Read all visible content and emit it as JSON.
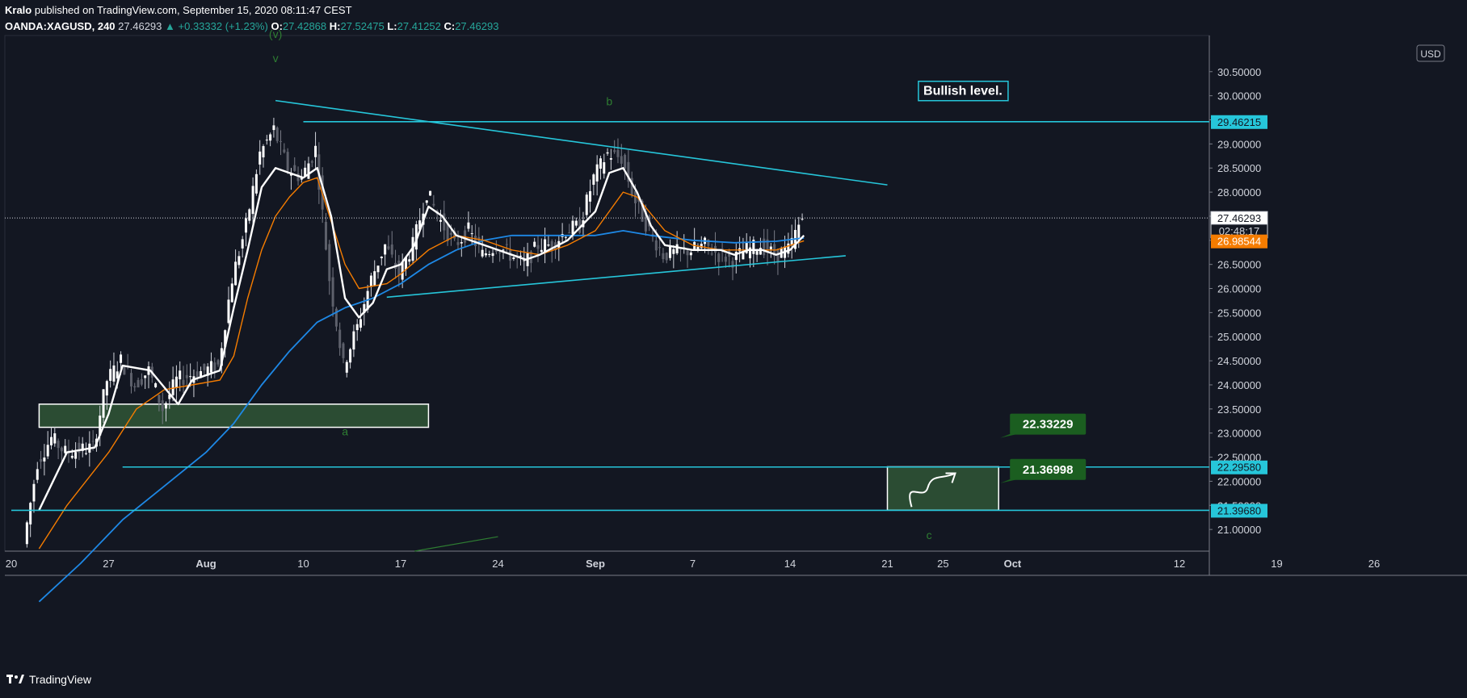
{
  "header": {
    "author": "Kralo",
    "published": "published on TradingView.com, September 15, 2020 08:11:47 CEST",
    "symbol": "OANDA:XAGUSD, 240",
    "last": "27.46293",
    "change": "+0.33332 (+1.23%)",
    "o_label": "O:",
    "o": "27.42868",
    "h_label": "H:",
    "h": "27.52475",
    "l_label": "L:",
    "l": "27.41252",
    "c_label": "C:",
    "c": "27.46293"
  },
  "footer": {
    "brand": "TradingView"
  },
  "currency_label": "USD",
  "colors": {
    "background": "#131722",
    "trendline": "#26c6da",
    "ma_fast": "#ffffff",
    "ma_mid": "#f57c00",
    "ma_slow": "#1e88e5",
    "zone_fill": "#2b4c33",
    "label_green": "#1b5e20",
    "wave_label": "#2e7d32"
  },
  "chart_data": {
    "type": "candlestick",
    "y_axis": {
      "range": [
        20.55,
        31.25
      ],
      "ticks": [
        "21.00000",
        "21.50000",
        "22.00000",
        "22.50000",
        "23.00000",
        "23.50000",
        "24.00000",
        "24.50000",
        "25.00000",
        "25.50000",
        "26.00000",
        "26.50000",
        "27.00000",
        "27.50000",
        "28.00000",
        "28.50000",
        "29.00000",
        "29.50000",
        "30.00000",
        "30.50000"
      ],
      "tick_values": [
        21.0,
        21.5,
        22.0,
        22.5,
        23.0,
        23.5,
        24.0,
        24.5,
        25.0,
        25.5,
        26.0,
        26.5,
        27.0,
        27.5,
        28.0,
        28.5,
        29.0,
        29.5,
        30.0,
        30.5
      ]
    },
    "x_axis": {
      "labels": [
        "20",
        "27",
        "Aug",
        "10",
        "17",
        "24",
        "Sep",
        "7",
        "14",
        "21",
        "25",
        "Oct",
        "12",
        "19",
        "26"
      ],
      "dates": [
        "2020-07-20",
        "2020-07-27",
        "2020-08-03",
        "2020-08-10",
        "2020-08-17",
        "2020-08-24",
        "2020-08-31",
        "2020-09-07",
        "2020-09-14",
        "2020-09-21",
        "2020-09-25",
        "2020-09-30",
        "2020-10-12",
        "2020-10-19",
        "2020-10-26"
      ]
    },
    "close_path": [
      [
        "2020-07-21",
        20.7
      ],
      [
        "2020-07-22",
        22.4
      ],
      [
        "2020-07-23",
        22.9
      ],
      [
        "2020-07-24",
        22.6
      ],
      [
        "2020-07-26",
        22.7
      ],
      [
        "2020-07-27",
        24.1
      ],
      [
        "2020-07-28",
        24.5
      ],
      [
        "2020-07-29",
        24.0
      ],
      [
        "2020-07-30",
        24.3
      ],
      [
        "2020-07-31",
        23.5
      ],
      [
        "2020-08-01",
        24.1
      ],
      [
        "2020-08-03",
        24.3
      ],
      [
        "2020-08-04",
        24.4
      ],
      [
        "2020-08-05",
        26.2
      ],
      [
        "2020-08-06",
        27.3
      ],
      [
        "2020-08-07",
        28.8
      ],
      [
        "2020-08-08",
        29.3
      ],
      [
        "2020-08-09",
        28.5
      ],
      [
        "2020-08-10",
        28.3
      ],
      [
        "2020-08-11",
        28.9
      ],
      [
        "2020-08-12",
        26.2
      ],
      [
        "2020-08-13",
        24.4
      ],
      [
        "2020-08-14",
        25.2
      ],
      [
        "2020-08-15",
        26.2
      ],
      [
        "2020-08-16",
        26.9
      ],
      [
        "2020-08-17",
        26.3
      ],
      [
        "2020-08-18",
        26.9
      ],
      [
        "2020-08-19",
        28.0
      ],
      [
        "2020-08-20",
        27.4
      ],
      [
        "2020-08-21",
        26.9
      ],
      [
        "2020-08-22",
        27.2
      ],
      [
        "2020-08-23",
        26.7
      ],
      [
        "2020-08-24",
        26.9
      ],
      [
        "2020-08-25",
        26.7
      ],
      [
        "2020-08-26",
        26.5
      ],
      [
        "2020-08-27",
        26.9
      ],
      [
        "2020-08-28",
        26.9
      ],
      [
        "2020-08-29",
        27.2
      ],
      [
        "2020-08-30",
        27.3
      ],
      [
        "2020-08-31",
        28.3
      ],
      [
        "2020-09-01",
        28.8
      ],
      [
        "2020-09-02",
        28.7
      ],
      [
        "2020-09-03",
        27.8
      ],
      [
        "2020-09-04",
        27.2
      ],
      [
        "2020-09-05",
        26.7
      ],
      [
        "2020-09-07",
        26.8
      ],
      [
        "2020-09-08",
        26.9
      ],
      [
        "2020-09-09",
        26.7
      ],
      [
        "2020-09-10",
        26.6
      ],
      [
        "2020-09-11",
        26.8
      ],
      [
        "2020-09-12",
        26.9
      ],
      [
        "2020-09-13",
        26.7
      ],
      [
        "2020-09-14",
        26.8
      ],
      [
        "2020-09-15",
        27.46
      ]
    ],
    "ma_fast_path": [
      [
        "2020-07-22",
        21.4
      ],
      [
        "2020-07-24",
        22.6
      ],
      [
        "2020-07-26",
        22.7
      ],
      [
        "2020-07-27",
        23.4
      ],
      [
        "2020-07-28",
        24.4
      ],
      [
        "2020-07-30",
        24.3
      ],
      [
        "2020-08-01",
        23.6
      ],
      [
        "2020-08-02",
        24.1
      ],
      [
        "2020-08-04",
        24.3
      ],
      [
        "2020-08-05",
        25.6
      ],
      [
        "2020-08-06",
        26.8
      ],
      [
        "2020-08-07",
        28.1
      ],
      [
        "2020-08-08",
        28.5
      ],
      [
        "2020-08-09",
        28.4
      ],
      [
        "2020-08-10",
        28.3
      ],
      [
        "2020-08-11",
        28.5
      ],
      [
        "2020-08-12",
        27.5
      ],
      [
        "2020-08-13",
        25.8
      ],
      [
        "2020-08-14",
        25.4
      ],
      [
        "2020-08-15",
        25.7
      ],
      [
        "2020-08-16",
        26.4
      ],
      [
        "2020-08-17",
        26.5
      ],
      [
        "2020-08-18",
        26.9
      ],
      [
        "2020-08-19",
        27.7
      ],
      [
        "2020-08-20",
        27.5
      ],
      [
        "2020-08-21",
        27.1
      ],
      [
        "2020-08-22",
        27.0
      ],
      [
        "2020-08-23",
        26.9
      ],
      [
        "2020-08-24",
        26.8
      ],
      [
        "2020-08-26",
        26.6
      ],
      [
        "2020-08-27",
        26.7
      ],
      [
        "2020-08-29",
        27.0
      ],
      [
        "2020-08-31",
        27.6
      ],
      [
        "2020-09-01",
        28.4
      ],
      [
        "2020-09-02",
        28.5
      ],
      [
        "2020-09-03",
        28.0
      ],
      [
        "2020-09-04",
        27.3
      ],
      [
        "2020-09-05",
        26.9
      ],
      [
        "2020-09-07",
        26.8
      ],
      [
        "2020-09-09",
        26.8
      ],
      [
        "2020-09-10",
        26.7
      ],
      [
        "2020-09-11",
        26.8
      ],
      [
        "2020-09-12",
        26.8
      ],
      [
        "2020-09-13",
        26.7
      ],
      [
        "2020-09-14",
        26.8
      ],
      [
        "2020-09-15",
        27.1
      ]
    ],
    "ma_mid_path": [
      [
        "2020-07-22",
        20.6
      ],
      [
        "2020-07-24",
        21.5
      ],
      [
        "2020-07-27",
        22.6
      ],
      [
        "2020-07-29",
        23.5
      ],
      [
        "2020-07-31",
        23.9
      ],
      [
        "2020-08-02",
        24.0
      ],
      [
        "2020-08-04",
        24.1
      ],
      [
        "2020-08-05",
        24.6
      ],
      [
        "2020-08-06",
        25.8
      ],
      [
        "2020-08-07",
        26.8
      ],
      [
        "2020-08-08",
        27.5
      ],
      [
        "2020-08-09",
        27.9
      ],
      [
        "2020-08-10",
        28.2
      ],
      [
        "2020-08-11",
        28.3
      ],
      [
        "2020-08-12",
        27.4
      ],
      [
        "2020-08-13",
        26.5
      ],
      [
        "2020-08-14",
        26.0
      ],
      [
        "2020-08-16",
        26.1
      ],
      [
        "2020-08-17",
        26.3
      ],
      [
        "2020-08-19",
        26.8
      ],
      [
        "2020-08-21",
        27.1
      ],
      [
        "2020-08-23",
        27.0
      ],
      [
        "2020-08-25",
        26.8
      ],
      [
        "2020-08-27",
        26.7
      ],
      [
        "2020-08-29",
        26.9
      ],
      [
        "2020-08-31",
        27.2
      ],
      [
        "2020-09-01",
        27.6
      ],
      [
        "2020-09-02",
        28.0
      ],
      [
        "2020-09-03",
        27.9
      ],
      [
        "2020-09-05",
        27.2
      ],
      [
        "2020-09-07",
        26.9
      ],
      [
        "2020-09-09",
        26.8
      ],
      [
        "2020-09-11",
        26.8
      ],
      [
        "2020-09-13",
        26.8
      ],
      [
        "2020-09-15",
        26.99
      ]
    ],
    "ma_slow_path": [
      [
        "2020-07-22",
        19.5
      ],
      [
        "2020-07-25",
        20.3
      ],
      [
        "2020-07-28",
        21.2
      ],
      [
        "2020-07-31",
        21.9
      ],
      [
        "2020-08-03",
        22.6
      ],
      [
        "2020-08-05",
        23.2
      ],
      [
        "2020-08-07",
        24.0
      ],
      [
        "2020-08-09",
        24.7
      ],
      [
        "2020-08-11",
        25.3
      ],
      [
        "2020-08-13",
        25.6
      ],
      [
        "2020-08-15",
        25.8
      ],
      [
        "2020-08-17",
        26.1
      ],
      [
        "2020-08-19",
        26.5
      ],
      [
        "2020-08-21",
        26.8
      ],
      [
        "2020-08-23",
        27.0
      ],
      [
        "2020-08-25",
        27.1
      ],
      [
        "2020-08-28",
        27.1
      ],
      [
        "2020-08-31",
        27.1
      ],
      [
        "2020-09-02",
        27.2
      ],
      [
        "2020-09-04",
        27.1
      ],
      [
        "2020-09-07",
        27.0
      ],
      [
        "2020-09-10",
        26.95
      ],
      [
        "2020-09-13",
        26.98
      ],
      [
        "2020-09-15",
        27.05
      ]
    ],
    "trendlines": [
      {
        "name": "upper-triangle-line",
        "from": [
          "2020-08-08",
          29.9
        ],
        "to": [
          "2020-09-21",
          28.15
        ]
      },
      {
        "name": "lower-triangle-line",
        "from": [
          "2020-08-16",
          25.82
        ],
        "to": [
          "2020-09-18",
          26.68
        ]
      },
      {
        "name": "level-29-line",
        "from": [
          "2020-08-10",
          29.46215
        ],
        "to": [
          "2020-11-01",
          29.46215
        ]
      },
      {
        "name": "level-22-line",
        "from": [
          "2020-07-28",
          22.2958
        ],
        "to": [
          "2020-11-01",
          22.2958
        ]
      },
      {
        "name": "level-21-line",
        "from": [
          "2020-07-20",
          21.3968
        ],
        "to": [
          "2020-11-01",
          21.3968
        ]
      }
    ],
    "zone": {
      "from": [
        "2020-07-22",
        23.6
      ],
      "to": [
        "2020-08-19",
        23.12
      ]
    },
    "target_box": {
      "from": [
        "2020-09-21",
        22.3
      ],
      "to": [
        "2020-09-29",
        21.4
      ]
    },
    "price_labels": [
      {
        "text": "29.46215",
        "value": 29.46215,
        "style": "cyan"
      },
      {
        "text": "27.46293",
        "value": 27.46293,
        "style": "white"
      },
      {
        "text": "02:48:17",
        "value": 27.2,
        "style": "timer"
      },
      {
        "text": "26.98544",
        "value": 26.98544,
        "style": "orange"
      },
      {
        "text": "22.29580",
        "value": 22.2958,
        "style": "cyan"
      },
      {
        "text": "21.39680",
        "value": 21.3968,
        "style": "cyan"
      }
    ],
    "annotations": {
      "bullish": "Bullish level.",
      "callout_high": "22.33229",
      "callout_low": "21.36998",
      "wave_v_top": "(v)",
      "wave_v": "v",
      "wave_b": "b",
      "wave_a": "a",
      "wave_c": "c"
    },
    "current_price": 27.46293
  }
}
